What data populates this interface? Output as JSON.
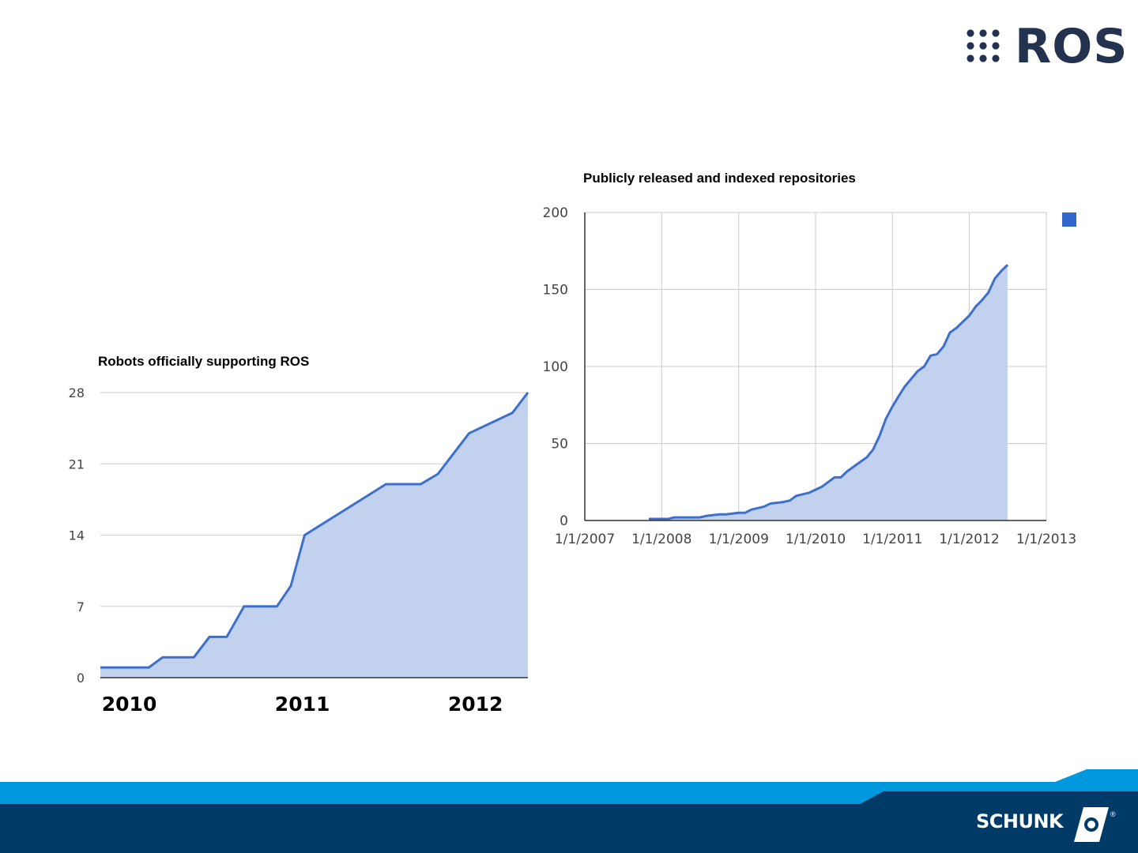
{
  "header": {
    "logo_text": "ROS",
    "logo_name": "ros-logo"
  },
  "footer": {
    "logo_text": "SCHUNK",
    "logo_mark": "®",
    "bar_colors": {
      "light": "#0099dd",
      "dark": "#003a66"
    }
  },
  "chart_data": [
    {
      "type": "area",
      "title": "Robots officially supporting ROS",
      "xlabel": "",
      "ylabel": "",
      "x_ticks": [
        2010,
        2011,
        2012
      ],
      "x_tick_labels": [
        "2010",
        "2011",
        "2012"
      ],
      "xlim": [
        2009.97,
        2012.44
      ],
      "ylim": [
        0,
        28
      ],
      "y_ticks": [
        0,
        7,
        14,
        21,
        28
      ],
      "grid": "horizontal",
      "series": [
        {
          "x": [
            2009.97,
            2010.03,
            2010.25,
            2010.33,
            2010.51,
            2010.6,
            2010.7,
            2010.8,
            2010.99,
            2011.07,
            2011.15,
            2011.62,
            2011.82,
            2011.92,
            2012.1,
            2012.35,
            2012.44
          ],
          "values": [
            1,
            1,
            1,
            2,
            2,
            4,
            4,
            7,
            7,
            9,
            14,
            19,
            19,
            20,
            24,
            26,
            28
          ],
          "color": "#3366cc",
          "fill": "#c2d1ee"
        }
      ]
    },
    {
      "type": "area",
      "title": "Publicly released and indexed repositories",
      "xlabel": "",
      "ylabel": "",
      "x_tick_labels": [
        "1/1/2007",
        "1/1/2008",
        "1/1/2009",
        "1/1/2010",
        "1/1/2011",
        "1/1/2012",
        "1/1/2013"
      ],
      "xlim": [
        "2007-01-01",
        "2013-01-01"
      ],
      "ylim": [
        0,
        200
      ],
      "y_ticks": [
        0,
        50,
        100,
        150,
        200
      ],
      "grid": "both",
      "legend": {
        "position": "top-right",
        "color": "#3366cc"
      },
      "series": [
        {
          "x": [
            "2007-11-01",
            "2008-01-01",
            "2008-02-01",
            "2008-03-01",
            "2008-06-01",
            "2008-07-01",
            "2008-08-01",
            "2008-10-01",
            "2008-11-01",
            "2009-01-01",
            "2009-02-01",
            "2009-03-01",
            "2009-05-01",
            "2009-06-01",
            "2009-08-01",
            "2009-09-01",
            "2009-10-01",
            "2009-12-01",
            "2010-02-01",
            "2010-04-01",
            "2010-05-01",
            "2010-06-01",
            "2010-08-01",
            "2010-09-01",
            "2010-10-01",
            "2010-11-01",
            "2010-12-01",
            "2011-01-01",
            "2011-02-01",
            "2011-03-01",
            "2011-05-01",
            "2011-06-01",
            "2011-07-01",
            "2011-08-01",
            "2011-09-01",
            "2011-10-01",
            "2011-11-01",
            "2011-12-01",
            "2012-01-01",
            "2012-02-01",
            "2012-03-01",
            "2012-04-01",
            "2012-05-01",
            "2012-06-01",
            "2012-07-01"
          ],
          "values": [
            1,
            1,
            1,
            2,
            2,
            2,
            3,
            4,
            4,
            5,
            5,
            7,
            9,
            11,
            12,
            13,
            16,
            18,
            22,
            28,
            28,
            32,
            38,
            41,
            46,
            55,
            66,
            74,
            81,
            87,
            97,
            100,
            107,
            108,
            113,
            122,
            125,
            129,
            133,
            139,
            143,
            148,
            157,
            162,
            166
          ],
          "color": "#3366cc",
          "fill": "#c2d1ee"
        }
      ]
    }
  ]
}
